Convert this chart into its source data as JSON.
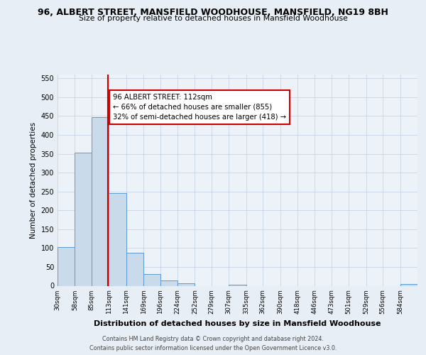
{
  "title": "96, ALBERT STREET, MANSFIELD WOODHOUSE, MANSFIELD, NG19 8BH",
  "subtitle": "Size of property relative to detached houses in Mansfield Woodhouse",
  "xlabel": "Distribution of detached houses by size in Mansfield Woodhouse",
  "ylabel": "Number of detached properties",
  "bin_labels": [
    "30sqm",
    "58sqm",
    "85sqm",
    "113sqm",
    "141sqm",
    "169sqm",
    "196sqm",
    "224sqm",
    "252sqm",
    "279sqm",
    "307sqm",
    "335sqm",
    "362sqm",
    "390sqm",
    "418sqm",
    "446sqm",
    "473sqm",
    "501sqm",
    "529sqm",
    "556sqm",
    "584sqm"
  ],
  "bin_edges": [
    30,
    58,
    85,
    113,
    141,
    169,
    196,
    224,
    252,
    279,
    307,
    335,
    362,
    390,
    418,
    446,
    473,
    501,
    529,
    556,
    584,
    612
  ],
  "bar_heights": [
    103,
    353,
    448,
    246,
    88,
    31,
    15,
    6,
    0,
    0,
    3,
    0,
    0,
    0,
    0,
    0,
    0,
    0,
    0,
    0,
    5
  ],
  "bar_color": "#c9daea",
  "bar_edge_color": "#5b9bd5",
  "property_value": 112,
  "vline_color": "#cc0000",
  "annotation_line1": "96 ALBERT STREET: 112sqm",
  "annotation_line2": "← 66% of detached houses are smaller (855)",
  "annotation_line3": "32% of semi-detached houses are larger (418) →",
  "annotation_box_edge_color": "#cc0000",
  "annotation_box_face_color": "white",
  "ylim": [
    0,
    560
  ],
  "yticks": [
    0,
    50,
    100,
    150,
    200,
    250,
    300,
    350,
    400,
    450,
    500,
    550
  ],
  "footer_line1": "Contains HM Land Registry data © Crown copyright and database right 2024.",
  "footer_line2": "Contains public sector information licensed under the Open Government Licence v3.0.",
  "bg_color": "#e8eef5",
  "plot_bg_color": "#edf2f8"
}
